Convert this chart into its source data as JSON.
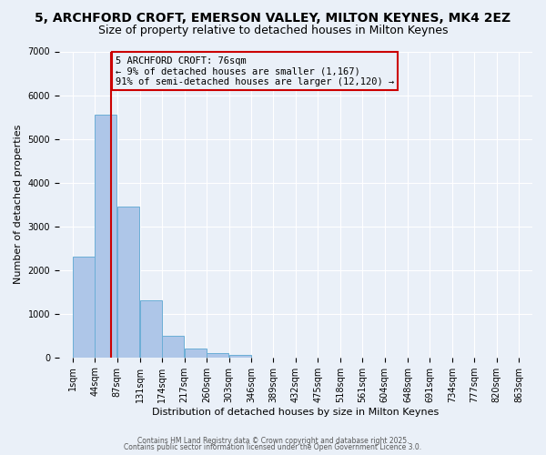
{
  "title1": "5, ARCHFORD CROFT, EMERSON VALLEY, MILTON KEYNES, MK4 2EZ",
  "title2": "Size of property relative to detached houses in Milton Keynes",
  "xlabel": "Distribution of detached houses by size in Milton Keynes",
  "ylabel": "Number of detached properties",
  "bin_labels": [
    "1sqm",
    "44sqm",
    "87sqm",
    "131sqm",
    "174sqm",
    "217sqm",
    "260sqm",
    "303sqm",
    "346sqm",
    "389sqm",
    "432sqm",
    "475sqm",
    "518sqm",
    "561sqm",
    "604sqm",
    "648sqm",
    "691sqm",
    "734sqm",
    "777sqm",
    "820sqm",
    "863sqm"
  ],
  "bin_edges": [
    1,
    44,
    87,
    131,
    174,
    217,
    260,
    303,
    346,
    389,
    432,
    475,
    518,
    561,
    604,
    648,
    691,
    734,
    777,
    820,
    863
  ],
  "bar_heights": [
    2300,
    5550,
    3450,
    1300,
    500,
    200,
    100,
    50,
    0,
    0,
    0,
    0,
    0,
    0,
    0,
    0,
    0,
    0,
    0,
    0
  ],
  "bar_color": "#aec6e8",
  "bar_edge_color": "#6baed6",
  "vline_x": 76,
  "vline_color": "#cc0000",
  "annotation_line1": "5 ARCHFORD CROFT: 76sqm",
  "annotation_line2": "← 9% of detached houses are smaller (1,167)",
  "annotation_line3": "91% of semi-detached houses are larger (12,120) →",
  "annotation_box_color": "#cc0000",
  "ylim": [
    0,
    7000
  ],
  "yticks": [
    0,
    1000,
    2000,
    3000,
    4000,
    5000,
    6000,
    7000
  ],
  "bg_color": "#eaf0f8",
  "grid_color": "#ffffff",
  "footer1": "Contains HM Land Registry data © Crown copyright and database right 2025.",
  "footer2": "Contains public sector information licensed under the Open Government Licence 3.0.",
  "title1_fontsize": 10,
  "title2_fontsize": 9,
  "axis_label_fontsize": 8,
  "tick_fontsize": 7,
  "annotation_fontsize": 7.5
}
